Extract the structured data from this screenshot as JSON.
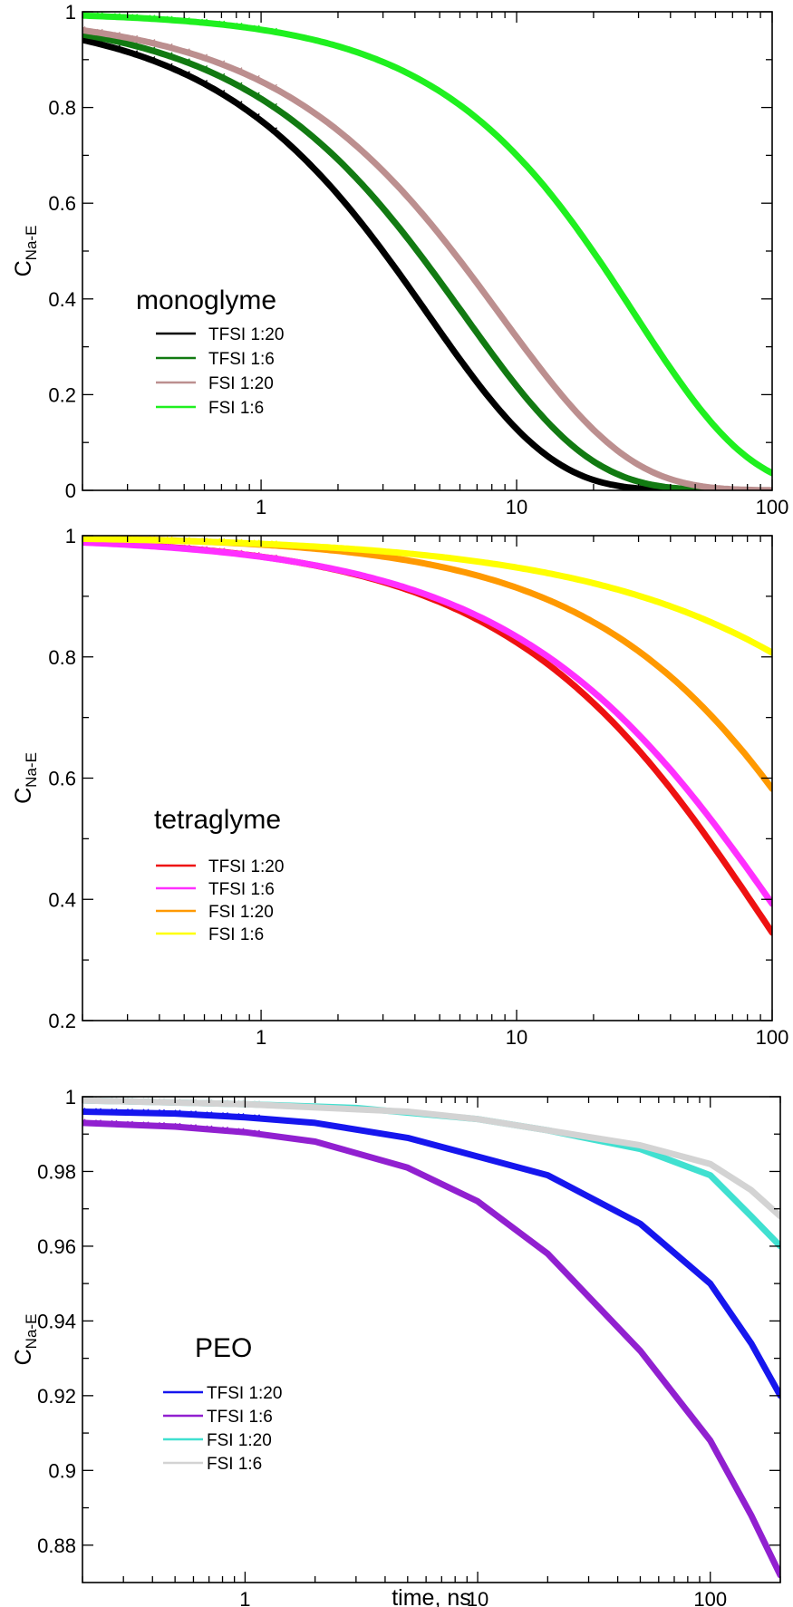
{
  "chart_data": [
    {
      "type": "line",
      "title": "monoglyme",
      "xscale": "log",
      "xlim": [
        0.2,
        100
      ],
      "ylim": [
        0,
        1
      ],
      "xticks": [
        1,
        10,
        100
      ],
      "xtick_labels": [
        "1",
        "10",
        "100"
      ],
      "yticks": [
        0,
        0.2,
        0.4,
        0.6,
        0.8,
        1
      ],
      "ytick_labels": [
        "0",
        "0.2",
        "0.4",
        "0.6",
        "0.8",
        "1"
      ],
      "xlabel": "",
      "ylabel": "C",
      "ylabel_sub": "Na-E",
      "legend_position": "center-left",
      "series": [
        {
          "name": "TFSI 1:20",
          "color": "#000000",
          "tau": 4.5,
          "beta": 0.9
        },
        {
          "name": "TFSI 1:6",
          "color": "#127a12",
          "tau": 6.2,
          "beta": 0.88
        },
        {
          "name": "FSI 1:20",
          "color": "#bc8f8f",
          "tau": 8.6,
          "beta": 0.86
        },
        {
          "name": "FSI 1:6",
          "color": "#1ff01f",
          "tau": 29,
          "beta": 0.97
        }
      ]
    },
    {
      "type": "line",
      "title": "tetraglyme",
      "xscale": "log",
      "xlim": [
        0.2,
        100
      ],
      "ylim": [
        0.2,
        1
      ],
      "xticks": [
        1,
        10,
        100
      ],
      "xtick_labels": [
        "1",
        "10",
        "100"
      ],
      "yticks": [
        0.2,
        0.4,
        0.6,
        0.8,
        1
      ],
      "ytick_labels": [
        "0.2",
        "0.4",
        "0.6",
        "0.8",
        "1"
      ],
      "xlabel": "",
      "ylabel": "C",
      "ylabel_sub": "Na-E",
      "legend_position": "center-left",
      "series": [
        {
          "name": "TFSI 1:20",
          "color": "#ee1111",
          "tau": 92,
          "beta": 0.74
        },
        {
          "name": "TFSI 1:6",
          "color": "#ff30ff",
          "tau": 110,
          "beta": 0.71
        },
        {
          "name": "FSI 1:20",
          "color": "#ff9900",
          "tau": 220,
          "beta": 0.78
        },
        {
          "name": "FSI 1:6",
          "color": "#ffff00",
          "tau": 1300,
          "beta": 0.6
        }
      ]
    },
    {
      "type": "line",
      "title": "PEO",
      "xscale": "log",
      "xlim": [
        0.2,
        200
      ],
      "ylim": [
        0.87,
        1
      ],
      "xticks": [
        1,
        10,
        100
      ],
      "xtick_labels": [
        "1",
        "10",
        "100"
      ],
      "yticks": [
        0.88,
        0.9,
        0.92,
        0.94,
        0.96,
        0.98,
        1
      ],
      "ytick_labels": [
        "0.88",
        "0.9",
        "0.92",
        "0.94",
        "0.96",
        "0.98",
        "1"
      ],
      "xlabel": "time, ns",
      "ylabel": "C",
      "ylabel_sub": "Na-E",
      "legend_position": "bottom-left",
      "series": [
        {
          "name": "TFSI 1:20",
          "color": "#1616ee",
          "points": [
            [
              0.2,
              0.996
            ],
            [
              0.5,
              0.9955
            ],
            [
              1,
              0.9945
            ],
            [
              2,
              0.993
            ],
            [
              5,
              0.989
            ],
            [
              10,
              0.984
            ],
            [
              20,
              0.979
            ],
            [
              50,
              0.966
            ],
            [
              100,
              0.95
            ],
            [
              150,
              0.934
            ],
            [
              200,
              0.92
            ]
          ]
        },
        {
          "name": "TFSI 1:6",
          "color": "#9120d0",
          "points": [
            [
              0.2,
              0.993
            ],
            [
              0.5,
              0.992
            ],
            [
              1,
              0.9905
            ],
            [
              2,
              0.988
            ],
            [
              5,
              0.981
            ],
            [
              10,
              0.972
            ],
            [
              20,
              0.958
            ],
            [
              50,
              0.932
            ],
            [
              100,
              0.908
            ],
            [
              150,
              0.888
            ],
            [
              200,
              0.872
            ]
          ]
        },
        {
          "name": "FSI 1:20",
          "color": "#40e0d0",
          "points": [
            [
              0.2,
              0.999
            ],
            [
              1,
              0.998
            ],
            [
              3,
              0.997
            ],
            [
              10,
              0.994
            ],
            [
              20,
              0.991
            ],
            [
              50,
              0.986
            ],
            [
              100,
              0.979
            ],
            [
              150,
              0.968
            ],
            [
              200,
              0.96
            ]
          ]
        },
        {
          "name": "FSI 1:6",
          "color": "#d3d3d3",
          "points": [
            [
              0.2,
              0.999
            ],
            [
              1,
              0.998
            ],
            [
              5,
              0.996
            ],
            [
              10,
              0.994
            ],
            [
              20,
              0.991
            ],
            [
              50,
              0.987
            ],
            [
              100,
              0.982
            ],
            [
              150,
              0.975
            ],
            [
              200,
              0.968
            ]
          ]
        }
      ]
    }
  ]
}
